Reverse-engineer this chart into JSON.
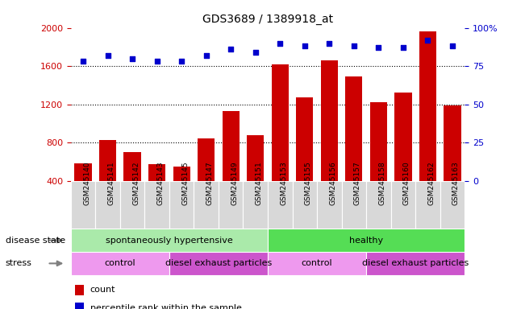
{
  "title": "GDS3689 / 1389918_at",
  "categories": [
    "GSM245140",
    "GSM245141",
    "GSM245142",
    "GSM245143",
    "GSM245145",
    "GSM245147",
    "GSM245149",
    "GSM245151",
    "GSM245153",
    "GSM245155",
    "GSM245156",
    "GSM245157",
    "GSM245158",
    "GSM245160",
    "GSM245162",
    "GSM245163"
  ],
  "bar_values": [
    580,
    830,
    700,
    570,
    545,
    840,
    1130,
    880,
    1620,
    1270,
    1660,
    1490,
    1220,
    1320,
    1960,
    1185
  ],
  "scatter_values": [
    78,
    82,
    80,
    78,
    78,
    82,
    86,
    84,
    90,
    88,
    90,
    88,
    87,
    87,
    92,
    88
  ],
  "bar_color": "#cc0000",
  "scatter_color": "#0000cc",
  "ylim_left": [
    400,
    2000
  ],
  "ylim_right": [
    0,
    100
  ],
  "yticks_left": [
    400,
    800,
    1200,
    1600,
    2000
  ],
  "yticks_right": [
    0,
    25,
    50,
    75,
    100
  ],
  "grid_values": [
    800,
    1200,
    1600
  ],
  "disease_state_groups": [
    {
      "label": "spontaneously hypertensive",
      "start": 0,
      "end": 8,
      "color": "#aaeaaa"
    },
    {
      "label": "healthy",
      "start": 8,
      "end": 16,
      "color": "#55dd55"
    }
  ],
  "stress_groups": [
    {
      "label": "control",
      "start": 0,
      "end": 4,
      "color": "#ee99ee"
    },
    {
      "label": "diesel exhaust particles",
      "start": 4,
      "end": 8,
      "color": "#cc55cc"
    },
    {
      "label": "control",
      "start": 8,
      "end": 12,
      "color": "#ee99ee"
    },
    {
      "label": "diesel exhaust particles",
      "start": 12,
      "end": 16,
      "color": "#cc55cc"
    }
  ],
  "disease_state_label": "disease state",
  "stress_label": "stress",
  "background_color": "#ffffff",
  "plot_bg_color": "#ffffff",
  "xticklabel_bg": "#d8d8d8"
}
